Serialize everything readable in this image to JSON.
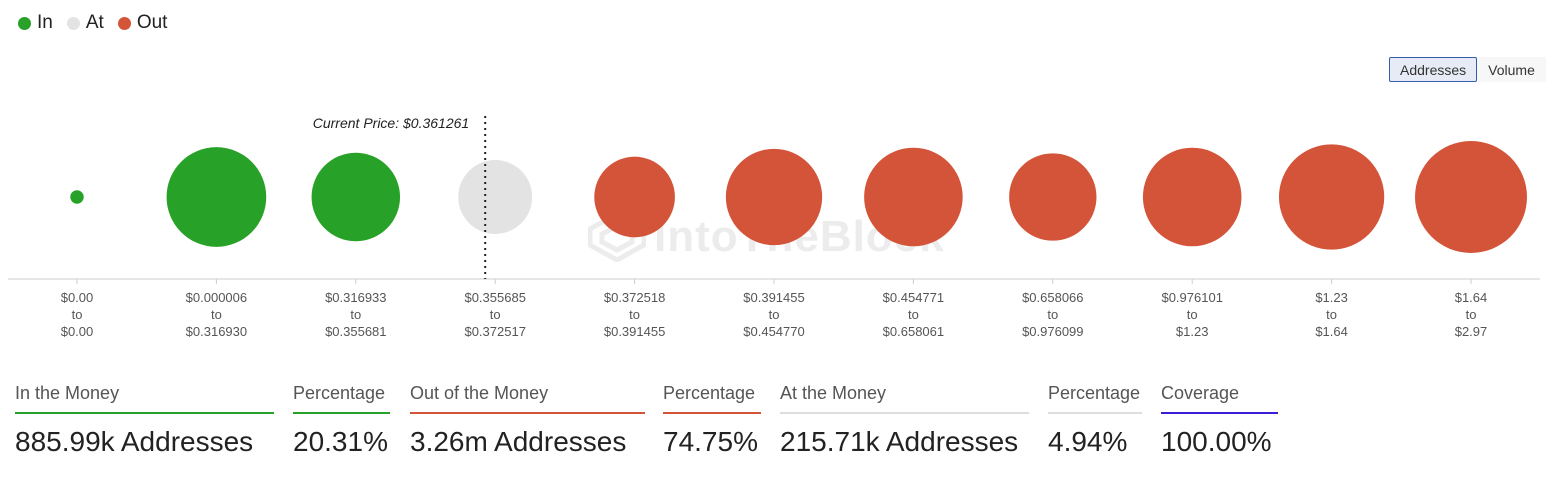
{
  "legend": [
    {
      "label": "In",
      "color": "#27a127"
    },
    {
      "label": "At",
      "color": "#e3e3e3"
    },
    {
      "label": "Out",
      "color": "#d4543a"
    }
  ],
  "toggle": {
    "addresses_label": "Addresses",
    "volume_label": "Volume",
    "active": "Addresses"
  },
  "watermark": "IntoTheBlock",
  "chart_data": {
    "type": "scatter",
    "annotation": "Current Price: $0.361261",
    "current_price": 0.361261,
    "categories": [
      {
        "from": "$0.00",
        "to": "$0.00",
        "status": "in",
        "relative_size": 0.12
      },
      {
        "from": "$0.000006",
        "to": "$0.316930",
        "status": "in",
        "relative_size": 0.89
      },
      {
        "from": "$0.316933",
        "to": "$0.355681",
        "status": "in",
        "relative_size": 0.79
      },
      {
        "from": "$0.355685",
        "to": "$0.372517",
        "status": "at",
        "relative_size": 0.66
      },
      {
        "from": "$0.372518",
        "to": "$0.391455",
        "status": "out",
        "relative_size": 0.72
      },
      {
        "from": "$0.391455",
        "to": "$0.454770",
        "status": "out",
        "relative_size": 0.86
      },
      {
        "from": "$0.454771",
        "to": "$0.658061",
        "status": "out",
        "relative_size": 0.88
      },
      {
        "from": "$0.658066",
        "to": "$0.976099",
        "status": "out",
        "relative_size": 0.78
      },
      {
        "from": "$0.976101",
        "to": "$1.23",
        "status": "out",
        "relative_size": 0.88
      },
      {
        "from": "$1.23",
        "to": "$1.64",
        "status": "out",
        "relative_size": 0.94
      },
      {
        "from": "$1.64",
        "to": "$2.97",
        "status": "out",
        "relative_size": 1.0
      }
    ],
    "range_connector": "to",
    "colors": {
      "in": "#27a127",
      "at": "#e3e3e3",
      "out": "#d4543a"
    }
  },
  "summary": {
    "in_money": {
      "label": "In the Money",
      "value": "885.99k Addresses",
      "color": "#27a127"
    },
    "in_pct": {
      "label": "Percentage",
      "value": "20.31%",
      "color": "#27a127"
    },
    "out_money": {
      "label": "Out of the Money",
      "value": "3.26m Addresses",
      "color": "#d4543a"
    },
    "out_pct": {
      "label": "Percentage",
      "value": "74.75%",
      "color": "#d4543a"
    },
    "at_money": {
      "label": "At the Money",
      "value": "215.71k Addresses",
      "color": "#dddddd"
    },
    "at_pct": {
      "label": "Percentage",
      "value": "4.94%",
      "color": "#dddddd"
    },
    "coverage": {
      "label": "Coverage",
      "value": "100.00%",
      "color": "#3a1fd6"
    }
  }
}
